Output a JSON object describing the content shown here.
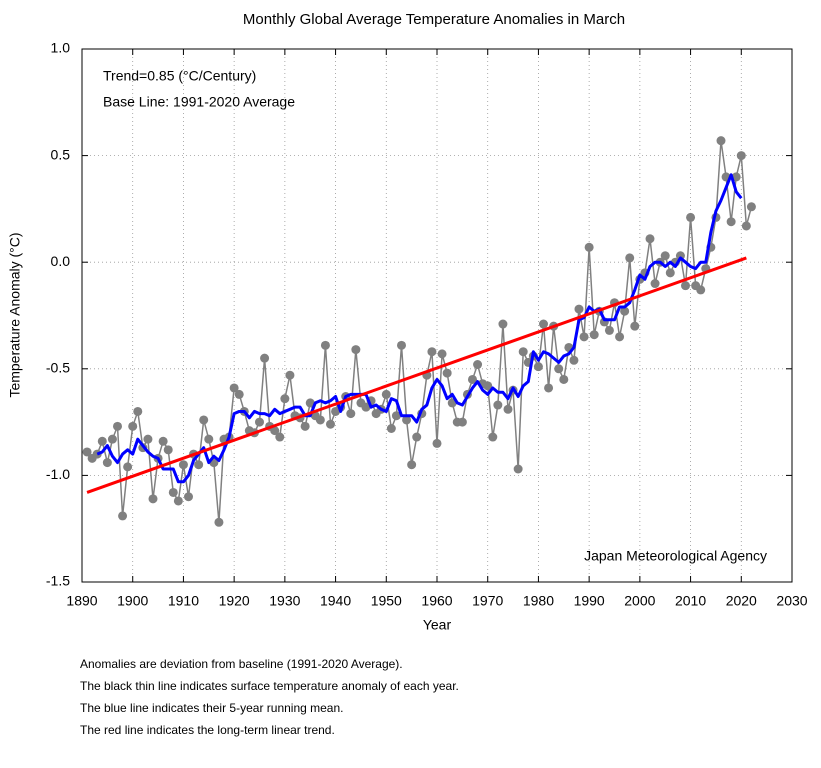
{
  "chart_data": {
    "type": "line",
    "title": "Monthly Global Average Temperature Anomalies in March",
    "xlabel": "Year",
    "ylabel": "Temperature Anomaly (°C)",
    "annotations": [
      "Trend=0.85 (°C/Century)",
      "Base Line: 1991-2020 Average",
      "Japan Meteorological Agency"
    ],
    "notes": [
      "Anomalies are deviation from baseline (1991-2020 Average).",
      "The black thin line indicates surface temperature anomaly of each year.",
      "The blue line indicates their 5-year running mean.",
      "The red line indicates the long-term linear trend."
    ],
    "xlim": [
      1890,
      2030
    ],
    "xticks": [
      1890,
      1900,
      1910,
      1920,
      1930,
      1940,
      1950,
      1960,
      1970,
      1980,
      1990,
      2000,
      2010,
      2020,
      2030
    ],
    "ylim": [
      -1.5,
      1.0
    ],
    "yticks": [
      {
        "value": -1.5,
        "label": "-1.5"
      },
      {
        "value": -1,
        "label": "-1.0"
      },
      -0.5,
      {
        "value": 0,
        "label": "0.0"
      },
      0.5,
      {
        "value": 1,
        "label": "1.0"
      }
    ],
    "grid": true,
    "x": [
      1891,
      1892,
      1893,
      1894,
      1895,
      1896,
      1897,
      1898,
      1899,
      1900,
      1901,
      1902,
      1903,
      1904,
      1905,
      1906,
      1907,
      1908,
      1909,
      1910,
      1911,
      1912,
      1913,
      1914,
      1915,
      1916,
      1917,
      1918,
      1919,
      1920,
      1921,
      1922,
      1923,
      1924,
      1925,
      1926,
      1927,
      1928,
      1929,
      1930,
      1931,
      1932,
      1933,
      1934,
      1935,
      1936,
      1937,
      1938,
      1939,
      1940,
      1941,
      1942,
      1943,
      1944,
      1945,
      1946,
      1947,
      1948,
      1949,
      1950,
      1951,
      1952,
      1953,
      1954,
      1955,
      1956,
      1957,
      1958,
      1959,
      1960,
      1961,
      1962,
      1963,
      1964,
      1965,
      1966,
      1967,
      1968,
      1969,
      1970,
      1971,
      1972,
      1973,
      1974,
      1975,
      1976,
      1977,
      1978,
      1979,
      1980,
      1981,
      1982,
      1983,
      1984,
      1985,
      1986,
      1987,
      1988,
      1989,
      1990,
      1991,
      1992,
      1993,
      1994,
      1995,
      1996,
      1997,
      1998,
      1999,
      2000,
      2001,
      2002,
      2003,
      2004,
      2005,
      2006,
      2007,
      2008,
      2009,
      2010,
      2011,
      2012,
      2013,
      2014,
      2015,
      2016,
      2017,
      2018,
      2019,
      2020,
      2021,
      2022
    ],
    "series": [
      {
        "color": "#808080",
        "markers": true,
        "values": [
          -0.89,
          -0.92,
          -0.9,
          -0.84,
          -0.94,
          -0.83,
          -0.77,
          -1.19,
          -0.96,
          -0.77,
          -0.7,
          -0.87,
          -0.83,
          -1.11,
          -0.92,
          -0.84,
          -0.88,
          -1.08,
          -1.12,
          -0.95,
          -1.1,
          -0.9,
          -0.95,
          -0.74,
          -0.83,
          -0.94,
          -1.22,
          -0.83,
          -0.82,
          -0.59,
          -0.62,
          -0.7,
          -0.79,
          -0.8,
          -0.75,
          -0.45,
          -0.77,
          -0.79,
          -0.82,
          -0.64,
          -0.53,
          -0.72,
          -0.73,
          -0.77,
          -0.66,
          -0.72,
          -0.74,
          -0.39,
          -0.76,
          -0.7,
          -0.68,
          -0.63,
          -0.71,
          -0.41,
          -0.66,
          -0.68,
          -0.65,
          -0.71,
          -0.69,
          -0.62,
          -0.78,
          -0.72,
          -0.39,
          -0.74,
          -0.95,
          -0.82,
          -0.71,
          -0.53,
          -0.42,
          -0.85,
          -0.43,
          -0.52,
          -0.66,
          -0.75,
          -0.75,
          -0.62,
          -0.55,
          -0.48,
          -0.57,
          -0.58,
          -0.82,
          -0.67,
          -0.29,
          -0.69,
          -0.6,
          -0.97,
          -0.42,
          -0.47,
          -0.44,
          -0.49,
          -0.29,
          -0.59,
          -0.3,
          -0.5,
          -0.55,
          -0.4,
          -0.46,
          -0.22,
          -0.35,
          0.07,
          -0.34,
          -0.23,
          -0.28,
          -0.32,
          -0.19,
          -0.35,
          -0.23,
          0.02,
          -0.3,
          -0.08,
          -0.05,
          0.11,
          -0.1,
          0.0,
          0.03,
          -0.05,
          0.0,
          0.03,
          -0.11,
          0.21,
          -0.11,
          -0.13,
          -0.03,
          0.07,
          0.21,
          0.57,
          0.4,
          0.19,
          0.4,
          0.5,
          0.17,
          0.26
        ]
      },
      {
        "color": "#0000ff",
        "values": [
          null,
          null,
          -0.9,
          -0.89,
          -0.86,
          -0.91,
          -0.94,
          -0.9,
          -0.88,
          -0.9,
          -0.83,
          -0.86,
          -0.89,
          -0.91,
          -0.92,
          -0.97,
          -0.97,
          -0.97,
          -1.03,
          -1.03,
          -1.0,
          -0.93,
          -0.9,
          -0.87,
          -0.94,
          -0.91,
          -0.93,
          -0.88,
          -0.82,
          -0.71,
          -0.7,
          -0.7,
          -0.73,
          -0.7,
          -0.71,
          -0.71,
          -0.72,
          -0.69,
          -0.71,
          -0.7,
          -0.69,
          -0.68,
          -0.68,
          -0.72,
          -0.72,
          -0.66,
          -0.65,
          -0.66,
          -0.65,
          -0.63,
          -0.7,
          -0.63,
          -0.62,
          -0.62,
          -0.62,
          -0.62,
          -0.68,
          -0.67,
          -0.69,
          -0.7,
          -0.64,
          -0.65,
          -0.72,
          -0.72,
          -0.72,
          -0.75,
          -0.69,
          -0.67,
          -0.59,
          -0.55,
          -0.58,
          -0.64,
          -0.62,
          -0.66,
          -0.67,
          -0.63,
          -0.59,
          -0.56,
          -0.6,
          -0.62,
          -0.59,
          -0.61,
          -0.61,
          -0.64,
          -0.59,
          -0.63,
          -0.58,
          -0.56,
          -0.42,
          -0.46,
          -0.42,
          -0.43,
          -0.45,
          -0.47,
          -0.44,
          -0.43,
          -0.4,
          -0.27,
          -0.26,
          -0.21,
          -0.23,
          -0.22,
          -0.27,
          -0.27,
          -0.27,
          -0.21,
          -0.21,
          -0.19,
          -0.13,
          -0.06,
          -0.08,
          -0.02,
          0.0,
          0.0,
          -0.02,
          0.0,
          -0.02,
          0.02,
          0.0,
          -0.02,
          -0.03,
          0.0,
          0.0,
          0.14,
          0.24,
          0.29,
          0.35,
          0.41,
          0.33,
          0.3,
          null,
          null
        ]
      },
      {
        "color": "#ff0000",
        "x": [
          1891,
          2021
        ],
        "values": [
          -1.08,
          0.02
        ]
      }
    ]
  }
}
